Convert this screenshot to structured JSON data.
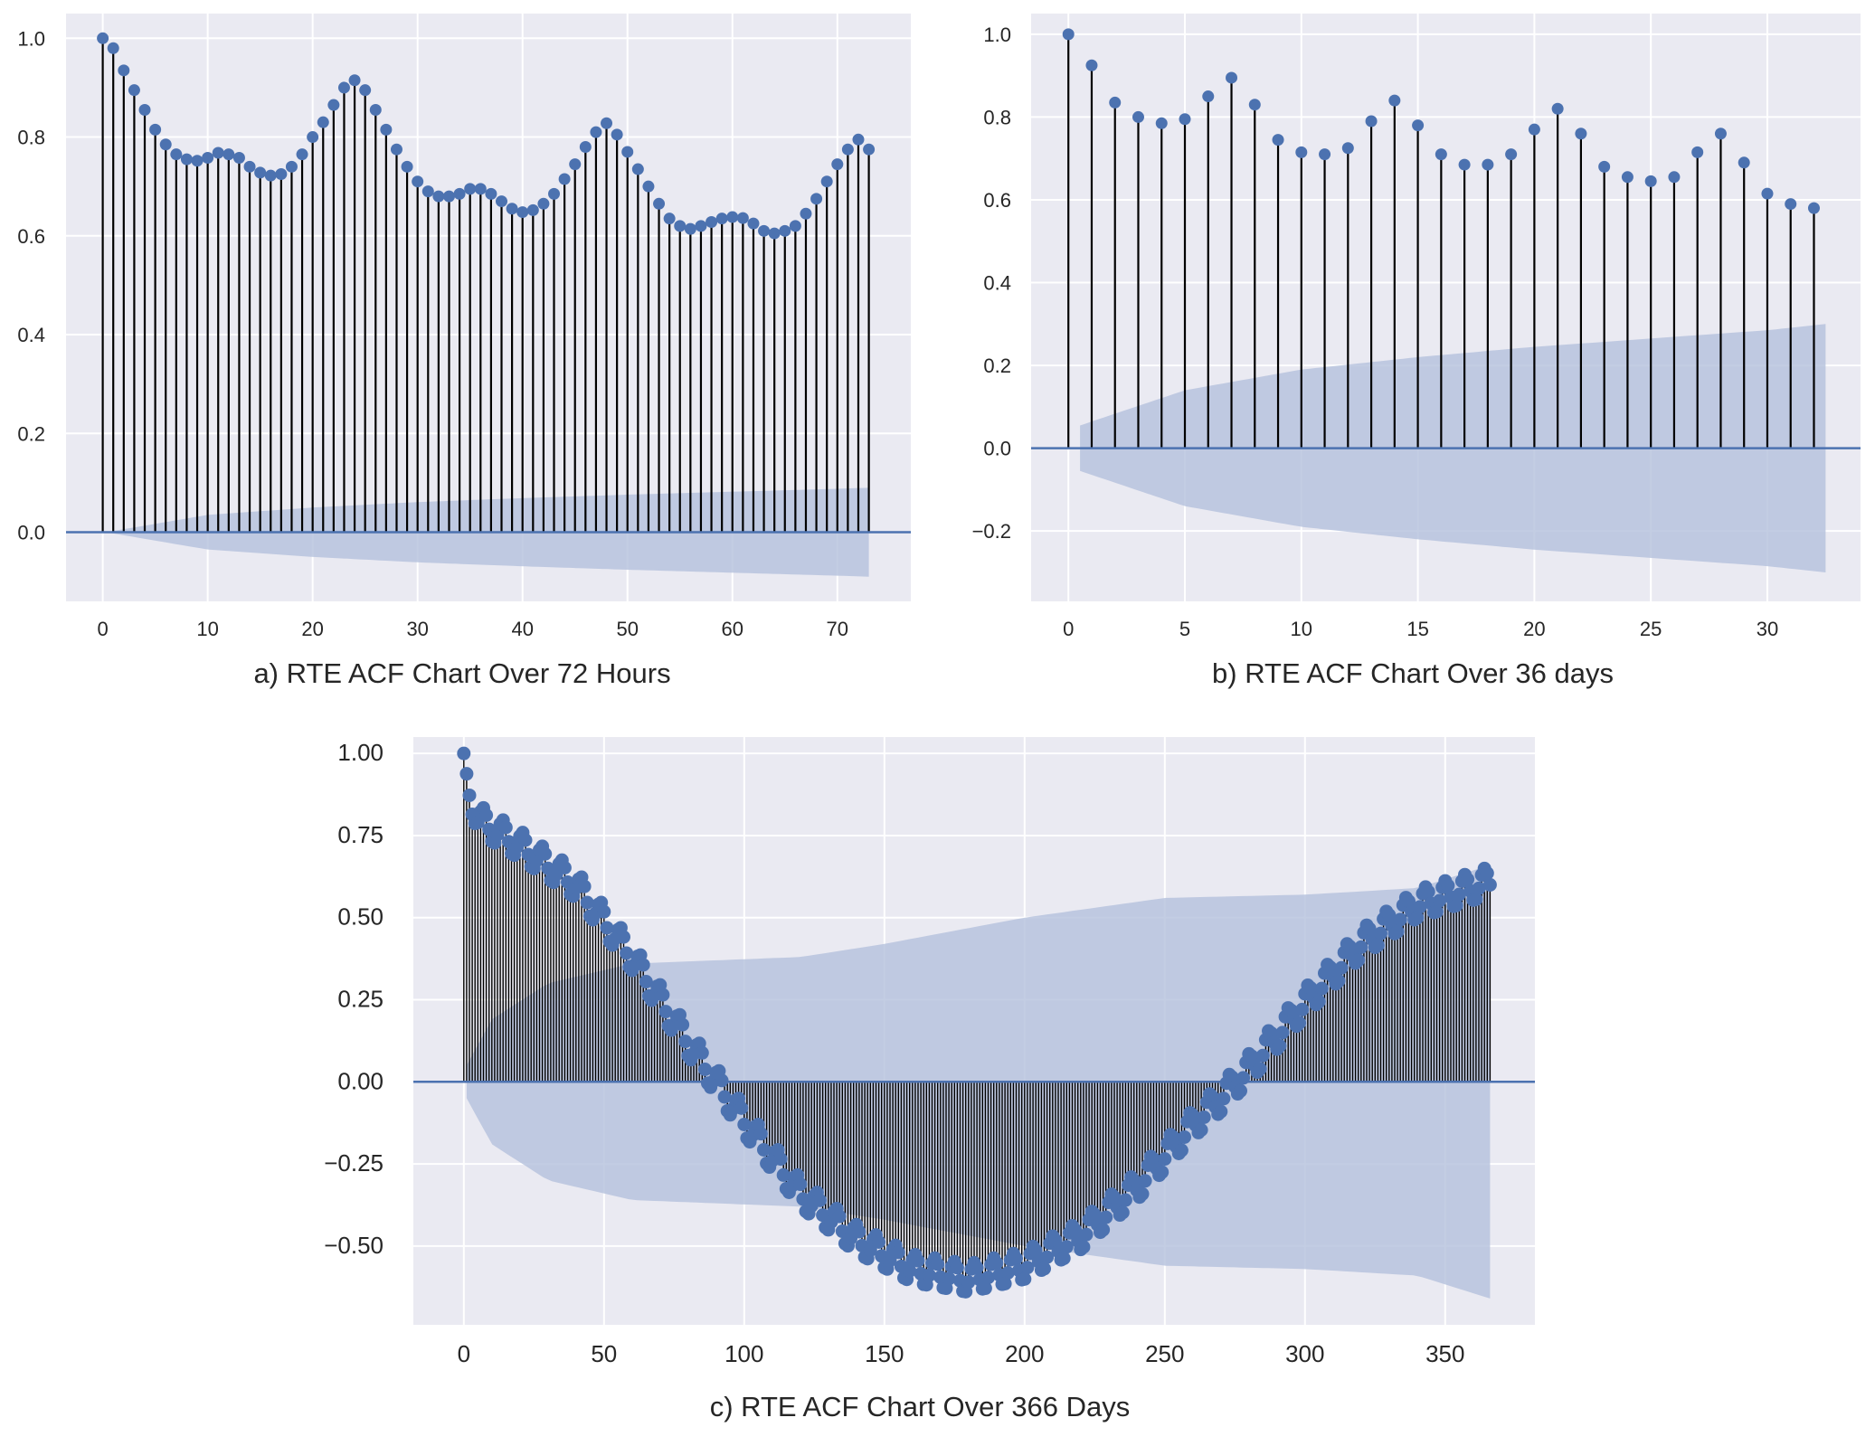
{
  "colors": {
    "background": "#eaeaf2",
    "grid": "#ffffff",
    "stem": "#000000",
    "marker": "#4c72b0",
    "zero_line": "#4c72b0",
    "band": "#b4c0dc"
  },
  "chart_data": [
    {
      "id": "a",
      "type": "stem",
      "title": "a) RTE ACF Chart Over 72 Hours",
      "xlabel": "",
      "ylabel": "",
      "xlim": [
        -3.5,
        77
      ],
      "ylim": [
        -0.14,
        1.05
      ],
      "xticks": [
        0,
        10,
        20,
        30,
        40,
        50,
        60,
        70
      ],
      "yticks": [
        0.0,
        0.2,
        0.4,
        0.6,
        0.8,
        1.0
      ],
      "ytick_labels": [
        "0.0",
        "0.2",
        "0.4",
        "0.6",
        "0.8",
        "1.0"
      ],
      "grid": true,
      "lags": [
        0,
        1,
        2,
        3,
        4,
        5,
        6,
        7,
        8,
        9,
        10,
        11,
        12,
        13,
        14,
        15,
        16,
        17,
        18,
        19,
        20,
        21,
        22,
        23,
        24,
        25,
        26,
        27,
        28,
        29,
        30,
        31,
        32,
        33,
        34,
        35,
        36,
        37,
        38,
        39,
        40,
        41,
        42,
        43,
        44,
        45,
        46,
        47,
        48,
        49,
        50,
        51,
        52,
        53,
        54,
        55,
        56,
        57,
        58,
        59,
        60,
        61,
        62,
        63,
        64,
        65,
        66,
        67,
        68,
        69,
        70,
        71,
        72,
        73
      ],
      "values": [
        1.0,
        0.98,
        0.935,
        0.895,
        0.855,
        0.815,
        0.785,
        0.765,
        0.755,
        0.752,
        0.758,
        0.768,
        0.765,
        0.758,
        0.74,
        0.728,
        0.722,
        0.725,
        0.74,
        0.765,
        0.8,
        0.83,
        0.865,
        0.9,
        0.915,
        0.895,
        0.855,
        0.815,
        0.775,
        0.74,
        0.71,
        0.69,
        0.68,
        0.68,
        0.685,
        0.695,
        0.695,
        0.685,
        0.67,
        0.655,
        0.648,
        0.652,
        0.665,
        0.685,
        0.715,
        0.745,
        0.78,
        0.81,
        0.828,
        0.805,
        0.77,
        0.735,
        0.7,
        0.665,
        0.635,
        0.62,
        0.614,
        0.62,
        0.628,
        0.635,
        0.638,
        0.636,
        0.625,
        0.61,
        0.605,
        0.61,
        0.62,
        0.645,
        0.675,
        0.71,
        0.745,
        0.775,
        0.795,
        0.775
      ],
      "confidence_band": {
        "lags": [
          0.3,
          10,
          20,
          30,
          40,
          50,
          60,
          70,
          73
        ],
        "upper": [
          0.0,
          0.035,
          0.05,
          0.061,
          0.069,
          0.076,
          0.082,
          0.088,
          0.09
        ],
        "lower": [
          0.0,
          -0.035,
          -0.05,
          -0.061,
          -0.069,
          -0.076,
          -0.082,
          -0.088,
          -0.09
        ]
      }
    },
    {
      "id": "b",
      "type": "stem",
      "title": "b) RTE ACF Chart Over 36 days",
      "xlabel": "",
      "ylabel": "",
      "xlim": [
        -1.6,
        34
      ],
      "ylim": [
        -0.37,
        1.05
      ],
      "xticks": [
        0,
        5,
        10,
        15,
        20,
        25,
        30
      ],
      "yticks": [
        -0.2,
        0.0,
        0.2,
        0.4,
        0.6,
        0.8,
        1.0
      ],
      "ytick_labels": [
        "−0.2",
        "0.0",
        "0.2",
        "0.4",
        "0.6",
        "0.8",
        "1.0"
      ],
      "grid": true,
      "lags": [
        0,
        1,
        2,
        3,
        4,
        5,
        6,
        7,
        8,
        9,
        10,
        11,
        12,
        13,
        14,
        15,
        16,
        17,
        18,
        19,
        20,
        21,
        22,
        23,
        24,
        25,
        26,
        27,
        28,
        29,
        30,
        31,
        32
      ],
      "values": [
        1.0,
        0.925,
        0.835,
        0.8,
        0.785,
        0.795,
        0.85,
        0.895,
        0.83,
        0.745,
        0.715,
        0.71,
        0.725,
        0.79,
        0.84,
        0.78,
        0.71,
        0.685,
        0.685,
        0.71,
        0.77,
        0.82,
        0.76,
        0.68,
        0.655,
        0.645,
        0.655,
        0.715,
        0.76,
        0.69,
        0.615,
        0.59,
        0.58
      ],
      "confidence_band": {
        "lags": [
          0.5,
          5,
          10,
          15,
          20,
          25,
          30,
          32.5
        ],
        "upper": [
          0.055,
          0.14,
          0.19,
          0.22,
          0.245,
          0.265,
          0.285,
          0.3
        ],
        "lower": [
          -0.055,
          -0.14,
          -0.19,
          -0.22,
          -0.245,
          -0.265,
          -0.285,
          -0.3
        ]
      }
    },
    {
      "id": "c",
      "type": "stem",
      "title": "c) RTE ACF Chart Over 366 Days",
      "xlabel": "",
      "ylabel": "",
      "xlim": [
        -18,
        382
      ],
      "ylim": [
        -0.74,
        1.05
      ],
      "xticks": [
        0,
        50,
        100,
        150,
        200,
        250,
        300,
        350
      ],
      "yticks": [
        -0.5,
        -0.25,
        0.0,
        0.25,
        0.5,
        0.75,
        1.0
      ],
      "ytick_labels": [
        "−0.50",
        "−0.25",
        "0.00",
        "0.25",
        "0.50",
        "0.75",
        "1.00"
      ],
      "grid": true,
      "lags_range": [
        0,
        366
      ],
      "acf_model": {
        "trend_points": {
          "lags": [
            0,
            1,
            5,
            20,
            40,
            60,
            80,
            90,
            100,
            120,
            140,
            160,
            180,
            200,
            220,
            240,
            260,
            270,
            280,
            300,
            320,
            340,
            366
          ],
          "values": [
            1.0,
            0.91,
            0.8,
            0.72,
            0.6,
            0.38,
            0.12,
            0.0,
            -0.12,
            -0.34,
            -0.48,
            -0.57,
            -0.6,
            -0.56,
            -0.47,
            -0.32,
            -0.13,
            -0.05,
            0.04,
            0.24,
            0.42,
            0.54,
            0.61
          ]
        },
        "weekly_amplitude": 0.045
      },
      "confidence_band": {
        "lags": [
          1,
          10,
          30,
          60,
          90,
          120,
          150,
          200,
          250,
          300,
          340,
          366
        ],
        "upper": [
          0.05,
          0.19,
          0.3,
          0.36,
          0.37,
          0.38,
          0.42,
          0.5,
          0.56,
          0.57,
          0.59,
          0.66
        ],
        "lower": [
          -0.05,
          -0.19,
          -0.3,
          -0.36,
          -0.37,
          -0.38,
          -0.42,
          -0.5,
          -0.56,
          -0.57,
          -0.59,
          -0.66
        ]
      }
    }
  ]
}
